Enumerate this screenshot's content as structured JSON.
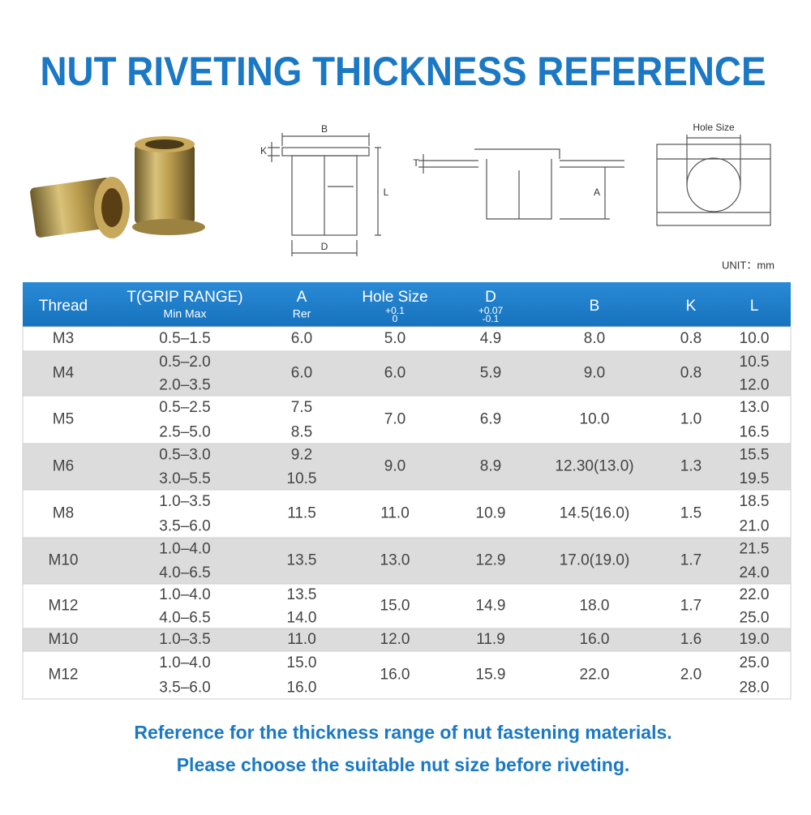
{
  "header": {
    "title": "NUT RIVETING THICKNESS REFERENCE"
  },
  "diagram": {
    "b": "B",
    "k": "K",
    "l": "L",
    "d": "D",
    "t": "T",
    "a": "A",
    "hole_size": "Hole Size",
    "unit": "UNIT：mm"
  },
  "table": {
    "headers": [
      [
        "Thread"
      ],
      [
        "T(GRIP RANGE)",
        "Min Max"
      ],
      [
        "A",
        "Rer"
      ],
      [
        "Hole Size",
        "+0.1",
        "0"
      ],
      [
        "D",
        "+0.07",
        "-0.1"
      ],
      [
        "B"
      ],
      [
        "K"
      ],
      [
        "L"
      ]
    ],
    "rows": [
      {
        "thread": "M3",
        "grip": [
          "0.5–1.5"
        ],
        "a": [
          "6.0"
        ],
        "hole": "5.0",
        "d": "4.9",
        "b": "8.0",
        "k": "0.8",
        "l": [
          "10.0"
        ]
      },
      {
        "thread": "M4",
        "grip": [
          "0.5–2.0",
          "2.0–3.5"
        ],
        "a": [
          "6.0"
        ],
        "hole": "6.0",
        "d": "5.9",
        "b": "9.0",
        "k": "0.8",
        "l": [
          "10.5",
          "12.0"
        ]
      },
      {
        "thread": "M5",
        "grip": [
          "0.5–2.5",
          "2.5–5.0"
        ],
        "a": [
          "7.5",
          "8.5"
        ],
        "hole": "7.0",
        "d": "6.9",
        "b": "10.0",
        "k": "1.0",
        "l": [
          "13.0",
          "16.5"
        ]
      },
      {
        "thread": "M6",
        "grip": [
          "0.5–3.0",
          "3.0–5.5"
        ],
        "a": [
          "9.2",
          "10.5"
        ],
        "hole": "9.0",
        "d": "8.9",
        "b": "12.30(13.0)",
        "k": "1.3",
        "l": [
          "15.5",
          "19.5"
        ]
      },
      {
        "thread": "M8",
        "grip": [
          "1.0–3.5",
          "3.5–6.0"
        ],
        "a": [
          "11.5"
        ],
        "hole": "11.0",
        "d": "10.9",
        "b": "14.5(16.0)",
        "k": "1.5",
        "l": [
          "18.5",
          "21.0"
        ]
      },
      {
        "thread": "M10",
        "grip": [
          "1.0–4.0",
          "4.0–6.5"
        ],
        "a": [
          "13.5"
        ],
        "hole": "13.0",
        "d": "12.9",
        "b": "17.0(19.0)",
        "k": "1.7",
        "l": [
          "21.5",
          "24.0"
        ]
      },
      {
        "thread": "M12",
        "grip": [
          "1.0–4.0",
          "4.0–6.5"
        ],
        "a": [
          "13.5",
          "14.0"
        ],
        "hole": "15.0",
        "d": "14.9",
        "b": "18.0",
        "k": "1.7",
        "l": [
          "22.0",
          "25.0"
        ]
      },
      {
        "thread": "M10",
        "grip": [
          "1.0–3.5"
        ],
        "a": [
          "11.0"
        ],
        "hole": "12.0",
        "d": "11.9",
        "b": "16.0",
        "k": "1.6",
        "l": [
          "19.0"
        ]
      },
      {
        "thread": "M12",
        "grip": [
          "1.0–4.0",
          "3.5–6.0"
        ],
        "a": [
          "15.0",
          "16.0"
        ],
        "hole": "16.0",
        "d": "15.9",
        "b": "22.0",
        "k": "2.0",
        "l": [
          "25.0",
          "28.0"
        ]
      }
    ]
  },
  "footer": {
    "line1": "Reference for the thickness range of nut fastening materials.",
    "line2": "Please choose the suitable nut size before riveting."
  }
}
